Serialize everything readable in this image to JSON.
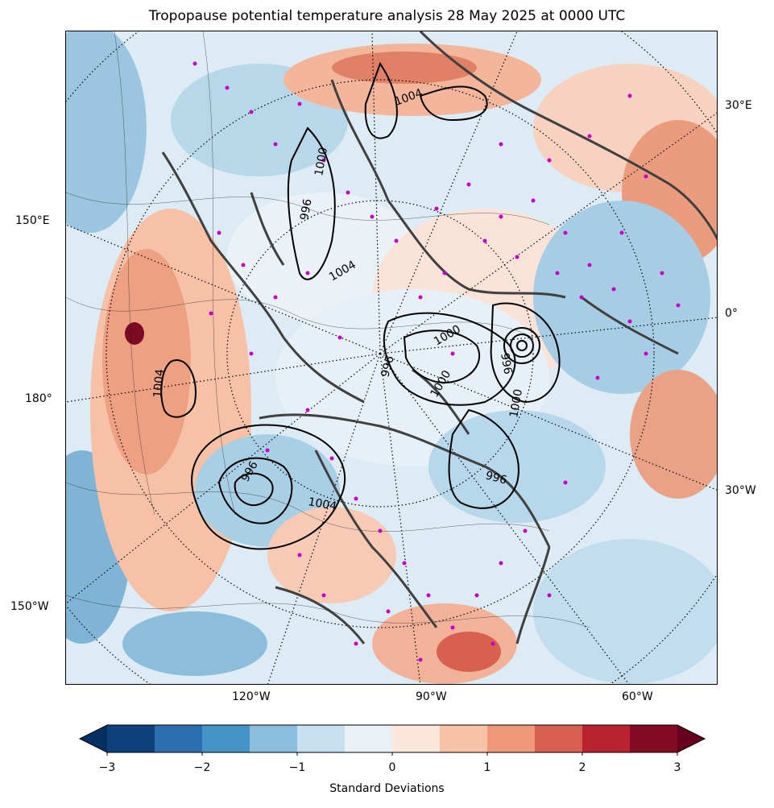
{
  "title": "Tropopause potential temperature analysis 28 May 2025 at 0000 UTC",
  "map": {
    "bottom_lon_labels": [
      "120°W",
      "90°W",
      "60°W"
    ],
    "left_lat_labels": [
      "150°E",
      "180°",
      "150°W"
    ],
    "right_lat_labels": [
      "30°E",
      "0°",
      "30°W"
    ],
    "contour_labels": [
      "1004",
      "996",
      "1000",
      "996",
      "1000",
      "1004",
      "1000",
      "996",
      "1004",
      "996",
      "996",
      "1000",
      "1004"
    ],
    "colors": {
      "ocean_blue": "#c6e0ef",
      "station_marker": "#cc00cc",
      "coastline": "#404040",
      "isobar": "#000000"
    }
  },
  "colorbar": {
    "title": "Standard Deviations",
    "tick_labels": [
      "−3",
      "−2",
      "−1",
      "0",
      "1",
      "2",
      "3"
    ],
    "colors": [
      "#053061",
      "#0e4179",
      "#2c6fb0",
      "#4594c7",
      "#8bbedc",
      "#c6e0ef",
      "#e9f1f6",
      "#fbe6dc",
      "#f8c2a6",
      "#f0987a",
      "#d6604d",
      "#b8232f",
      "#850b24",
      "#67001f"
    ]
  }
}
